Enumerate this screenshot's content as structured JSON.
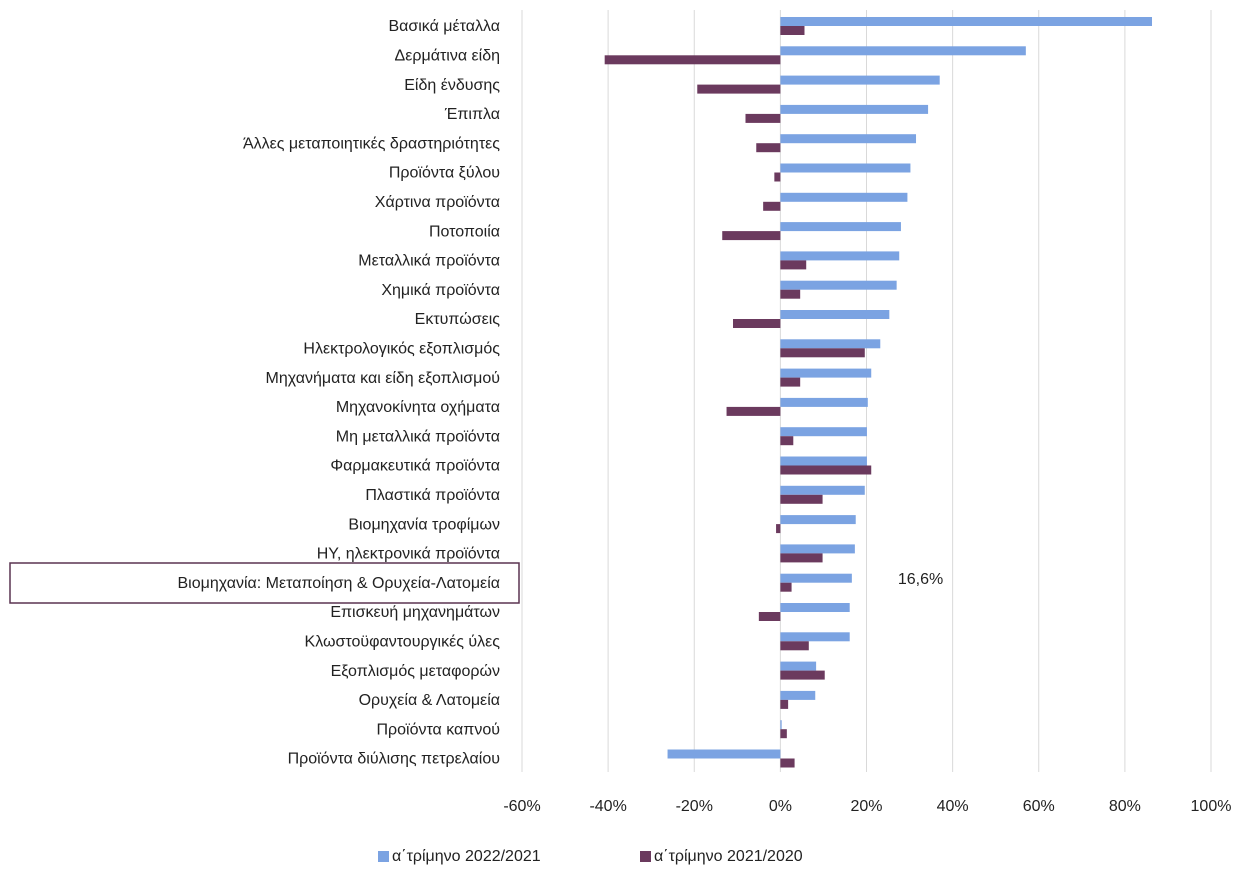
{
  "chart_data": {
    "type": "hbar",
    "categories": [
      "Βασικά μέταλλα",
      "Δερμάτινα είδη",
      "Είδη ένδυσης",
      "Έπιπλα",
      "Άλλες μεταποιητικές δραστηριότητες",
      "Προϊόντα ξύλου",
      "Χάρτινα προϊόντα",
      "Ποτοποιία",
      "Μεταλλικά προϊόντα",
      "Χημικά προϊόντα",
      "Εκτυπώσεις",
      "Ηλεκτρολογικός εξοπλισμός",
      "Μηχανήματα και είδη εξοπλισμού",
      "Μηχανοκίνητα οχήματα",
      "Μη μεταλλικά προϊόντα",
      "Φαρμακευτικά προϊόντα",
      "Πλαστικά προϊόντα",
      "Βιομηχανία τροφίμων",
      "ΗΥ, ηλεκτρονικά προϊόντα",
      "Βιομηχανία: Μεταποίηση & Ορυχεία-Λατομεία",
      "Επισκευή μηχανημάτων",
      "Κλωστοϋφαντουργικές ύλες",
      "Εξοπλισμός μεταφορών",
      "Ορυχεία & Λατομεία",
      "Προϊόντα καπνού",
      "Προϊόντα διύλισης πετρελαίου"
    ],
    "series": [
      {
        "name": "α΄τρίμηνο 2022/2021",
        "color": "#7ba3e2",
        "values": [
          86.3,
          57,
          37,
          34.3,
          31.5,
          30.2,
          29.5,
          28,
          27.6,
          27,
          25.3,
          23.2,
          21.1,
          20.3,
          20.1,
          20.1,
          19.6,
          17.5,
          17.3,
          16.6,
          16.1,
          16.1,
          8.3,
          8.1,
          0.3,
          -26.2
        ],
        "value_labels": [
          null,
          null,
          null,
          null,
          null,
          null,
          null,
          null,
          null,
          null,
          null,
          null,
          null,
          null,
          null,
          null,
          null,
          null,
          null,
          "16,6%",
          null,
          null,
          null,
          null,
          null,
          null
        ]
      },
      {
        "name": "α΄τρίμηνο 2021/2020",
        "color": "#6b3a5e",
        "values": [
          5.6,
          -40.8,
          -19.3,
          -8.1,
          -5.6,
          -1.4,
          -4,
          -13.5,
          6,
          4.6,
          -11,
          19.6,
          4.6,
          -12.5,
          3,
          21.1,
          9.8,
          -1,
          9.8,
          2.6,
          -5,
          6.6,
          10.3,
          1.8,
          1.5,
          3.3
        ]
      }
    ],
    "xlim": [
      -60,
      100
    ],
    "xticks": [
      {
        "value": -60,
        "label": "-60%"
      },
      {
        "value": -40,
        "label": "-40%"
      },
      {
        "value": -20,
        "label": "-20%"
      },
      {
        "value": 0,
        "label": "0%"
      },
      {
        "value": 20,
        "label": "20%"
      },
      {
        "value": 40,
        "label": "40%"
      },
      {
        "value": 60,
        "label": "60%"
      },
      {
        "value": 80,
        "label": "80%"
      },
      {
        "value": 100,
        "label": "100%"
      }
    ],
    "grid": true,
    "legend": "bottom"
  }
}
